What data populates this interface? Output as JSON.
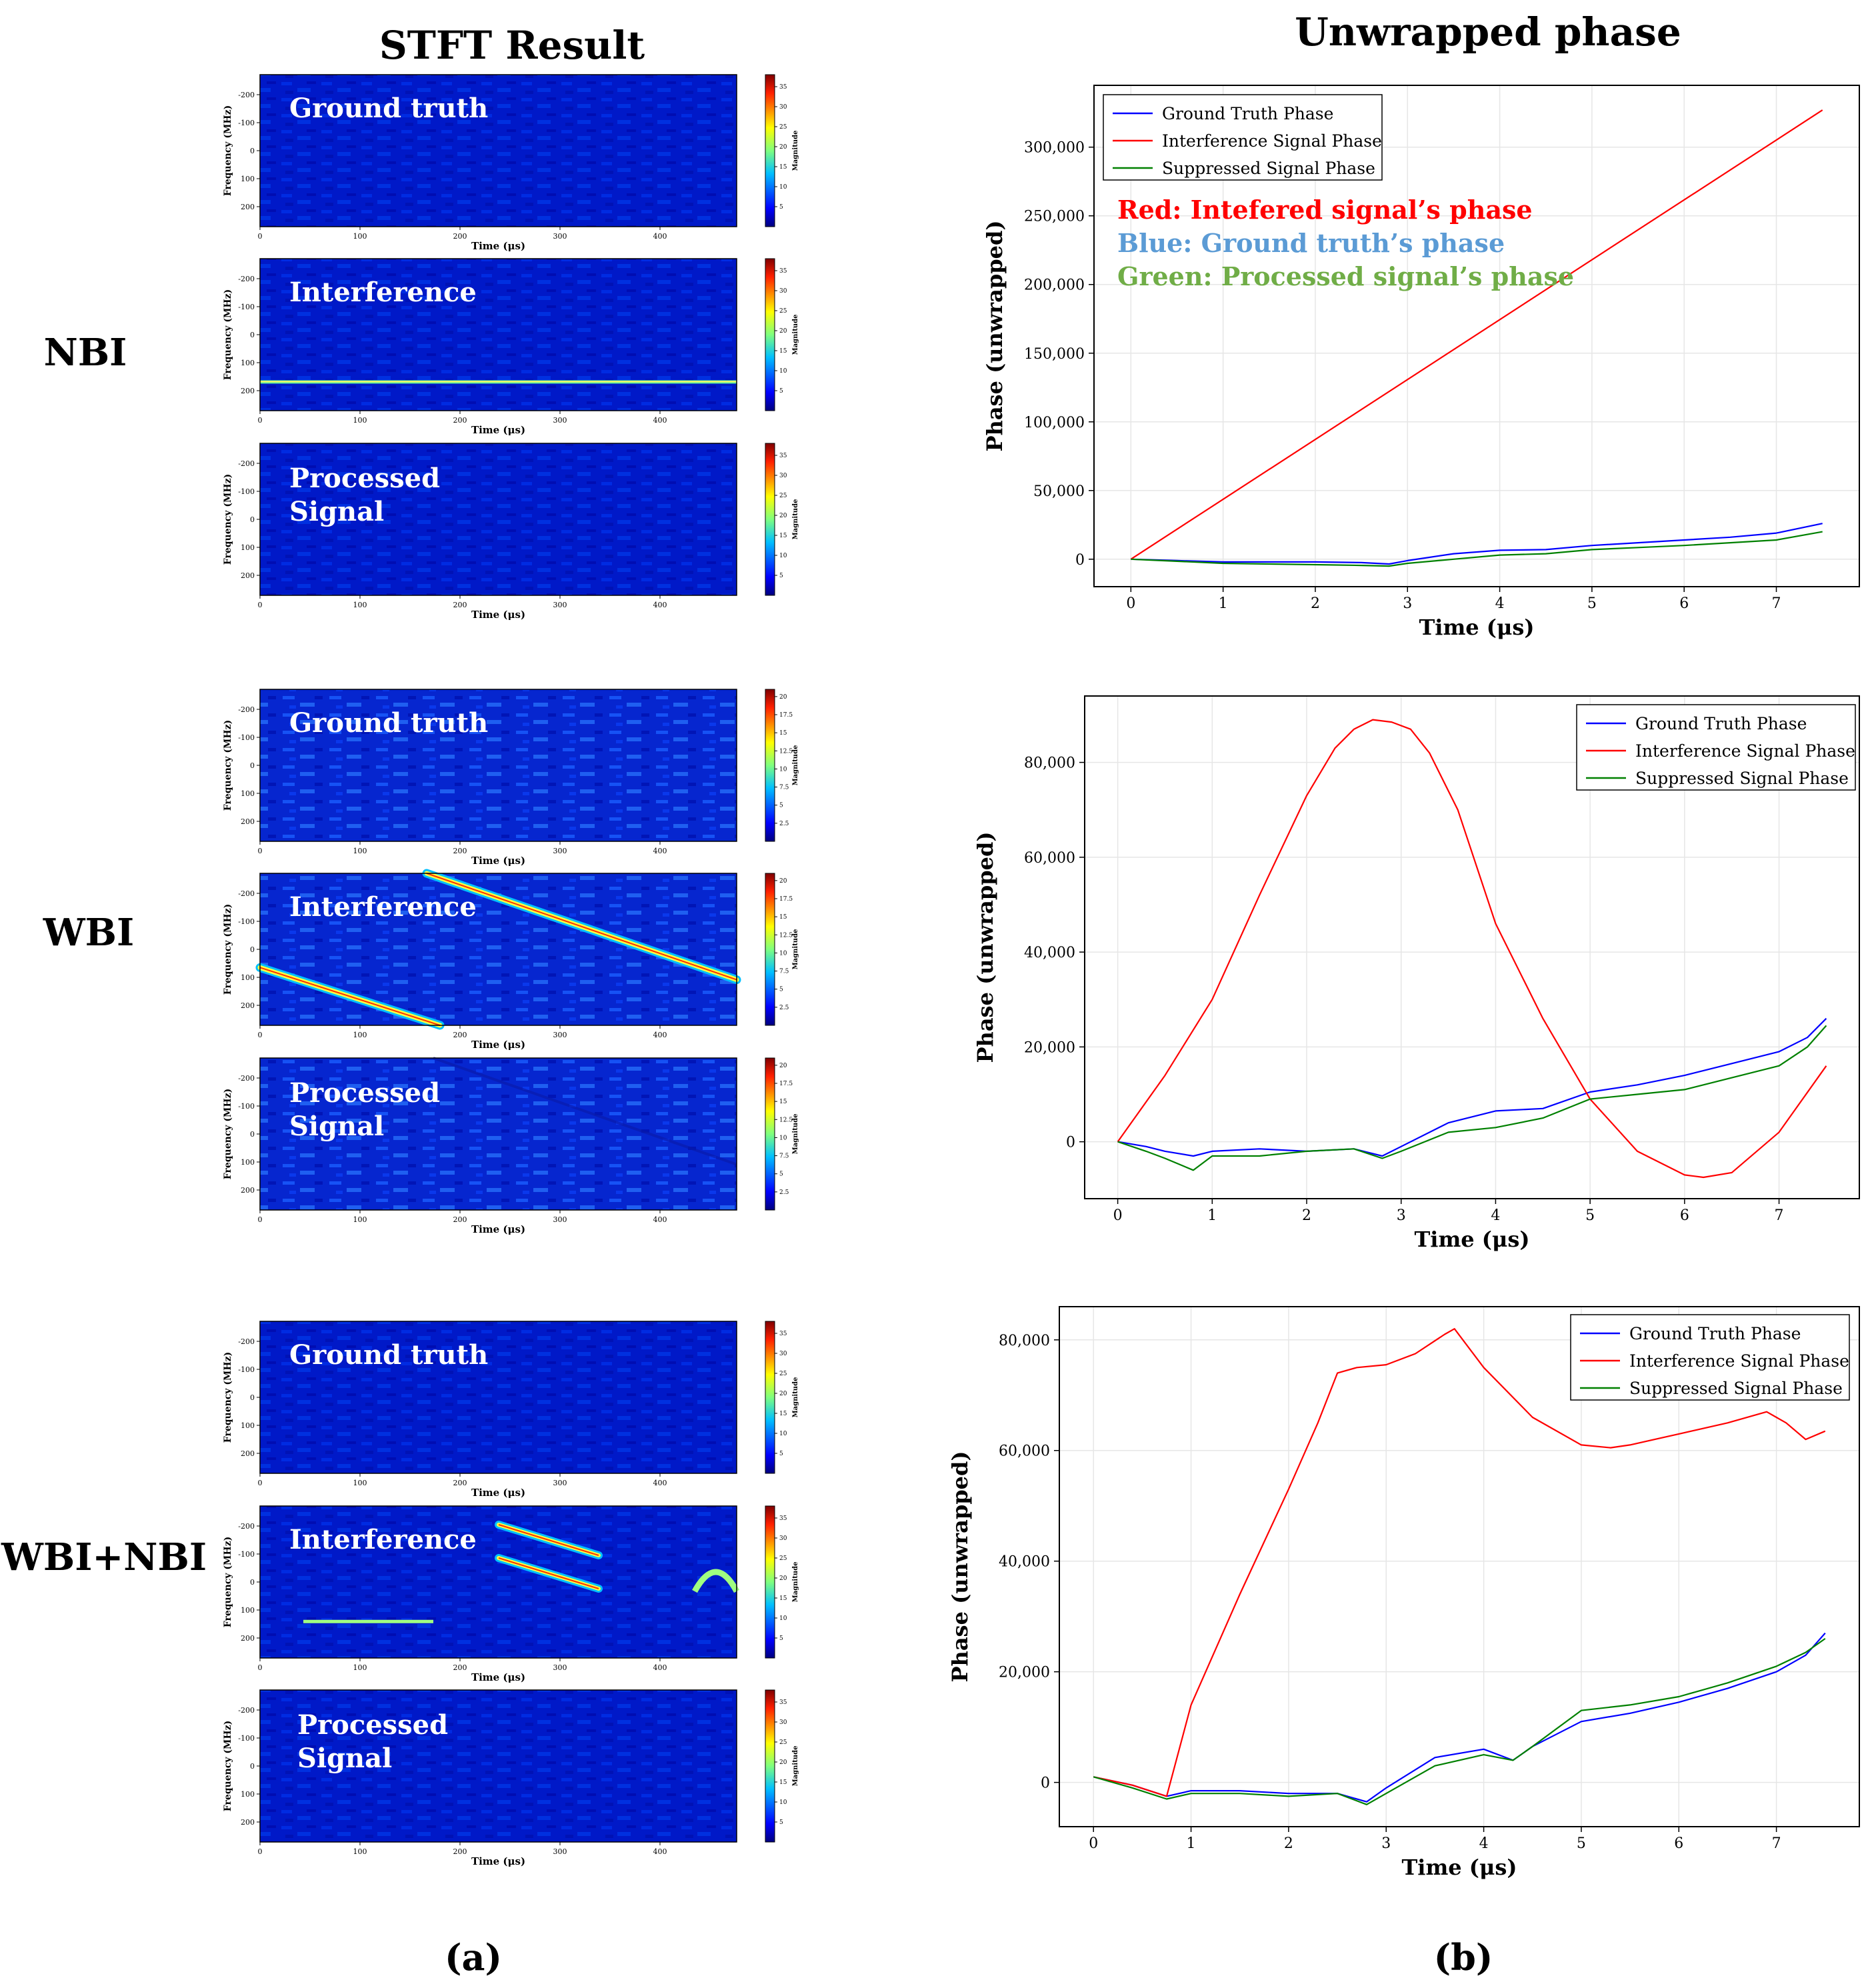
{
  "headers": {
    "left": "STFT Result",
    "right": "Unwrapped phase"
  },
  "captions": {
    "a": "(a)",
    "b": "(b)"
  },
  "rows": [
    {
      "label": "NBI",
      "cbar_ticks": [
        "35",
        "30",
        "25",
        "20",
        "15",
        "10",
        "5"
      ],
      "cbar_max": 38
    },
    {
      "label": "WBI",
      "cbar_ticks": [
        "20",
        "17.5",
        "15",
        "12.5",
        "10",
        "7.5",
        "5",
        "2.5"
      ],
      "cbar_max": 21
    },
    {
      "label": "WBI+NBI",
      "cbar_ticks": [
        "35",
        "30",
        "25",
        "20",
        "15",
        "10",
        "5"
      ],
      "cbar_max": 38
    }
  ],
  "stft": {
    "ylabel": "Frequency (MHz)",
    "xlabel": "Time (μs)",
    "cbar_label": "Magnitude",
    "xticks": [
      "0",
      "100",
      "200",
      "300",
      "400"
    ],
    "yticks": [
      "-200",
      "-100",
      "0",
      "100",
      "200"
    ],
    "panel_labels": {
      "ground": "Ground truth",
      "interference": "Interference",
      "processed_line1": "Processed",
      "processed_line2": "Signal"
    }
  },
  "annotation": {
    "red": "Red: Intefered signal’s phase",
    "blue": "Blue: Ground truth’s phase",
    "green": "Green: Processed signal’s phase",
    "colors": {
      "red": "#ff0000",
      "blue": "#5b9bd5",
      "green": "#70ad47"
    }
  },
  "chart_data": [
    {
      "type": "line",
      "xlabel": "Time (μs)",
      "ylabel": "Phase (unwrapped)",
      "xlim": [
        -0.4,
        7.9
      ],
      "ylim": [
        -20000,
        345000
      ],
      "xticks": [
        0,
        1,
        2,
        3,
        4,
        5,
        6,
        7
      ],
      "yticks": [
        0,
        50000,
        100000,
        150000,
        200000,
        250000,
        300000
      ],
      "ytick_labels": [
        "0",
        "50,000",
        "100,000",
        "150,000",
        "200,000",
        "250,000",
        "300,000"
      ],
      "grid": true,
      "legend": "top-left",
      "series": [
        {
          "name": "Ground Truth Phase",
          "color": "#0000ff",
          "x": [
            0,
            0.5,
            1,
            1.5,
            2,
            2.5,
            2.8,
            3,
            3.5,
            4,
            4.5,
            5,
            5.5,
            6,
            6.5,
            7,
            7.5
          ],
          "y": [
            0,
            -1000,
            -2000,
            -2000,
            -2000,
            -2500,
            -3500,
            -1000,
            4000,
            6500,
            7000,
            10000,
            12000,
            14000,
            16000,
            19000,
            26000
          ]
        },
        {
          "name": "Interference Signal Phase",
          "color": "#ff0000",
          "x": [
            0,
            7.5
          ],
          "y": [
            0,
            327000
          ]
        },
        {
          "name": "Suppressed Signal Phase",
          "color": "#008000",
          "x": [
            0,
            0.5,
            1,
            1.5,
            2,
            2.5,
            2.8,
            3,
            3.5,
            4,
            4.5,
            5,
            5.5,
            6,
            6.5,
            7,
            7.5
          ],
          "y": [
            0,
            -1500,
            -3000,
            -3500,
            -4000,
            -4500,
            -5000,
            -3000,
            0,
            3000,
            4000,
            7000,
            8500,
            10000,
            12000,
            14000,
            20000
          ]
        }
      ]
    },
    {
      "type": "line",
      "xlabel": "Time (μs)",
      "ylabel": "Phase (unwrapped)",
      "xlim": [
        -0.35,
        7.85
      ],
      "ylim": [
        -12000,
        94000
      ],
      "xticks": [
        0,
        1,
        2,
        3,
        4,
        5,
        6,
        7
      ],
      "yticks": [
        0,
        20000,
        40000,
        60000,
        80000
      ],
      "ytick_labels": [
        "0",
        "20,000",
        "40,000",
        "60,000",
        "80,000"
      ],
      "grid": true,
      "legend": "top-right",
      "series": [
        {
          "name": "Ground Truth Phase",
          "color": "#0000ff",
          "x": [
            0,
            0.3,
            0.5,
            0.8,
            1,
            1.5,
            2,
            2.5,
            2.8,
            3,
            3.5,
            4,
            4.5,
            5,
            5.5,
            6,
            6.5,
            7,
            7.3,
            7.5
          ],
          "y": [
            0,
            -1000,
            -2000,
            -3000,
            -2000,
            -1500,
            -2000,
            -1500,
            -3000,
            -1000,
            4000,
            6500,
            7000,
            10500,
            12000,
            14000,
            16500,
            19000,
            22000,
            26000
          ]
        },
        {
          "name": "Interference Signal Phase",
          "color": "#ff0000",
          "x": [
            0,
            0.5,
            1,
            1.5,
            2,
            2.3,
            2.5,
            2.7,
            2.9,
            3.1,
            3.3,
            3.6,
            4,
            4.5,
            5,
            5.5,
            6,
            6.2,
            6.5,
            7,
            7.5
          ],
          "y": [
            0,
            14000,
            30000,
            52000,
            73000,
            83000,
            87000,
            89000,
            88500,
            87000,
            82000,
            70000,
            46000,
            26000,
            9000,
            -2000,
            -7000,
            -7500,
            -6500,
            2000,
            16000
          ]
        },
        {
          "name": "Suppressed Signal Phase",
          "color": "#008000",
          "x": [
            0,
            0.3,
            0.5,
            0.8,
            1,
            1.5,
            2,
            2.5,
            2.8,
            3,
            3.5,
            4,
            4.5,
            5,
            5.5,
            6,
            6.5,
            7,
            7.3,
            7.5
          ],
          "y": [
            0,
            -2000,
            -3500,
            -6000,
            -3000,
            -3000,
            -2000,
            -1500,
            -3500,
            -2000,
            2000,
            3000,
            5000,
            9000,
            10000,
            11000,
            13500,
            16000,
            20000,
            24500
          ]
        }
      ]
    },
    {
      "type": "line",
      "xlabel": "Time (μs)",
      "ylabel": "Phase (unwrapped)",
      "xlim": [
        -0.35,
        7.85
      ],
      "ylim": [
        -8000,
        86000
      ],
      "xticks": [
        0,
        1,
        2,
        3,
        4,
        5,
        6,
        7
      ],
      "yticks": [
        0,
        20000,
        40000,
        60000,
        80000
      ],
      "ytick_labels": [
        "0",
        "20,000",
        "40,000",
        "60,000",
        "80,000"
      ],
      "grid": true,
      "legend": "top-right",
      "series": [
        {
          "name": "Ground Truth Phase",
          "color": "#0000ff",
          "x": [
            0,
            0.4,
            0.75,
            1,
            1.5,
            2,
            2.5,
            2.8,
            3,
            3.5,
            4,
            4.3,
            4.5,
            5,
            5.5,
            6,
            6.5,
            7,
            7.3,
            7.5
          ],
          "y": [
            1000,
            -500,
            -2500,
            -1500,
            -1500,
            -2000,
            -2000,
            -3500,
            -1000,
            4500,
            6000,
            4000,
            6500,
            11000,
            12500,
            14500,
            17000,
            20000,
            23000,
            27000
          ]
        },
        {
          "name": "Interference Signal Phase",
          "color": "#ff0000",
          "x": [
            0,
            0.4,
            0.75,
            1,
            1.5,
            2,
            2.3,
            2.5,
            2.7,
            3,
            3.3,
            3.6,
            3.7,
            4,
            4.5,
            5,
            5.3,
            5.5,
            6,
            6.5,
            6.9,
            7.1,
            7.3,
            7.5
          ],
          "y": [
            1000,
            -500,
            -2500,
            14000,
            34000,
            53000,
            65000,
            74000,
            75000,
            75500,
            77500,
            81000,
            82000,
            75000,
            66000,
            61000,
            60500,
            61000,
            63000,
            65000,
            67000,
            65000,
            62000,
            63500
          ]
        },
        {
          "name": "Suppressed Signal Phase",
          "color": "#008000",
          "x": [
            0,
            0.4,
            0.75,
            1,
            1.5,
            2,
            2.5,
            2.8,
            3,
            3.5,
            4,
            4.3,
            4.5,
            5,
            5.5,
            6,
            6.5,
            7,
            7.3,
            7.5
          ],
          "y": [
            1000,
            -1000,
            -3000,
            -2000,
            -2000,
            -2500,
            -2000,
            -4000,
            -2000,
            3000,
            5000,
            4000,
            6500,
            13000,
            14000,
            15500,
            18000,
            21000,
            23500,
            26000
          ]
        }
      ]
    }
  ]
}
